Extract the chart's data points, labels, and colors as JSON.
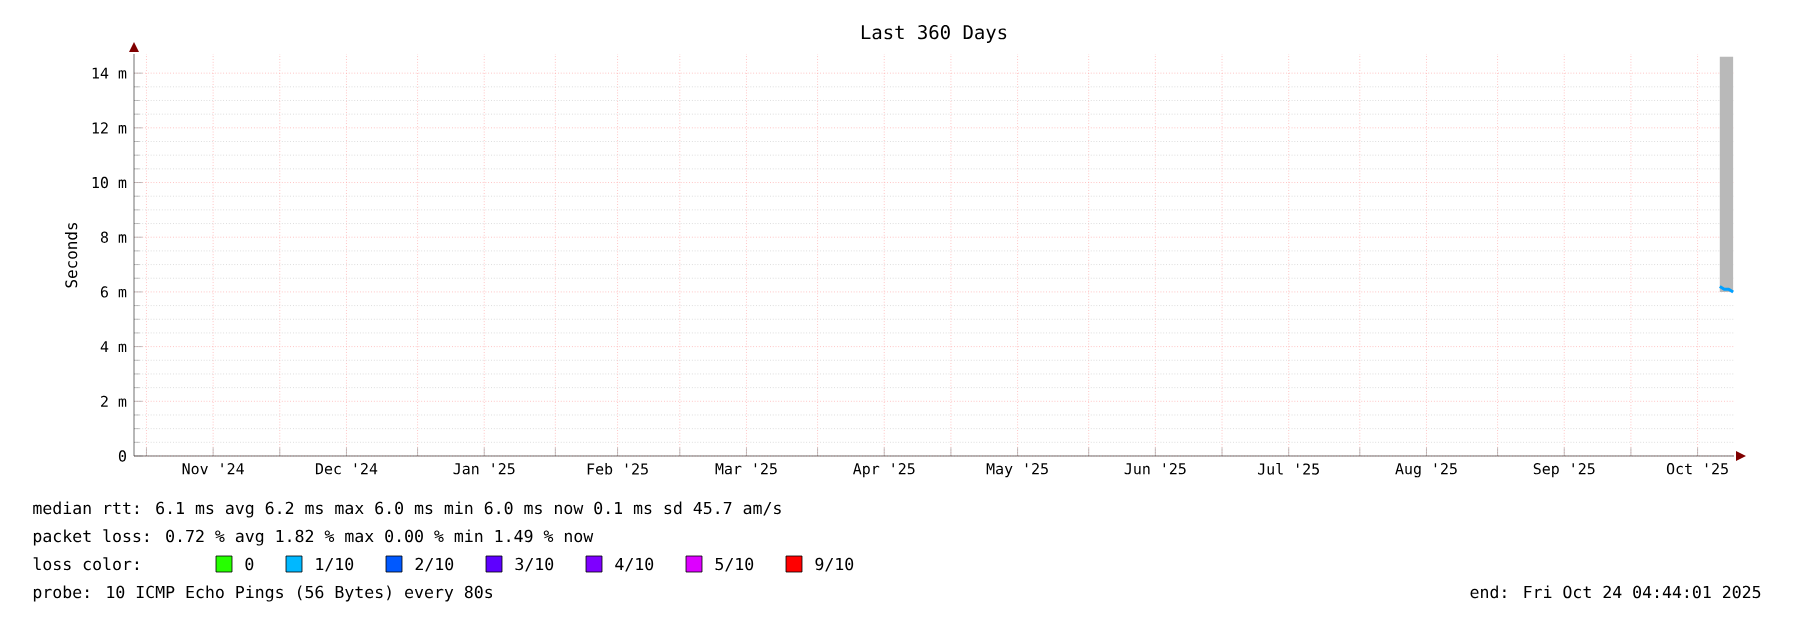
{
  "chart_data": {
    "type": "line",
    "title": "Last 360 Days",
    "ylabel": "Seconds",
    "xlim": [
      "2024-10-29T04:44",
      "2025-10-24T04:44"
    ],
    "xticks": [
      {
        "value": "2024-11-01",
        "label": null
      },
      {
        "value": "2024-11-16",
        "label": "Nov '24"
      },
      {
        "value": "2024-12-01",
        "label": null
      },
      {
        "value": "2024-12-16",
        "label": "Dec '24"
      },
      {
        "value": "2025-01-01",
        "label": null
      },
      {
        "value": "2025-01-16",
        "label": "Jan '25"
      },
      {
        "value": "2025-02-01",
        "label": null
      },
      {
        "value": "2025-02-15",
        "label": "Feb '25"
      },
      {
        "value": "2025-03-01",
        "label": null
      },
      {
        "value": "2025-03-16",
        "label": "Mar '25"
      },
      {
        "value": "2025-04-01",
        "label": null
      },
      {
        "value": "2025-04-16",
        "label": "Apr '25"
      },
      {
        "value": "2025-05-01",
        "label": null
      },
      {
        "value": "2025-05-16",
        "label": "May '25"
      },
      {
        "value": "2025-06-01",
        "label": null
      },
      {
        "value": "2025-06-16",
        "label": "Jun '25"
      },
      {
        "value": "2025-07-01",
        "label": null
      },
      {
        "value": "2025-07-16",
        "label": "Jul '25"
      },
      {
        "value": "2025-08-01",
        "label": null
      },
      {
        "value": "2025-08-16",
        "label": "Aug '25"
      },
      {
        "value": "2025-09-01",
        "label": null
      },
      {
        "value": "2025-09-16",
        "label": "Sep '25"
      },
      {
        "value": "2025-10-01",
        "label": null
      },
      {
        "value": "2025-10-16",
        "label": "Oct '25"
      }
    ],
    "ylim": [
      0,
      14.7
    ],
    "yticks": [
      {
        "value": 0,
        "label": "0"
      },
      {
        "value": 2,
        "label": "2 m"
      },
      {
        "value": 4,
        "label": "4 m"
      },
      {
        "value": 6,
        "label": "6 m"
      },
      {
        "value": 8,
        "label": "8 m"
      },
      {
        "value": 10,
        "label": "10 m"
      },
      {
        "value": 12,
        "label": "12 m"
      },
      {
        "value": 14,
        "label": "14 m"
      }
    ],
    "grid": true,
    "legend": "bottom",
    "series": [
      {
        "color": "#00a0ff",
        "x": [
          "2025-10-21",
          "2025-10-22",
          "2025-10-23",
          "2025-10-24"
        ],
        "values": [
          6.2,
          6.1,
          6.1,
          6.0
        ],
        "lower": [
          6.0,
          6.0,
          6.0,
          6.0
        ],
        "upper": [
          14.6,
          14.6,
          14.6,
          14.6
        ]
      },
      {
        "name": "0",
        "color": "#26ff00",
        "values": [
          null
        ]
      },
      {
        "name": "1/10",
        "color": "#00b8ff",
        "values": [
          null
        ]
      },
      {
        "name": "2/10",
        "color": "#0059ff",
        "values": [
          null
        ]
      },
      {
        "name": "3/10",
        "color": "#5e00ff",
        "values": [
          null
        ]
      },
      {
        "name": "4/10",
        "color": "#7e00ff",
        "values": [
          null
        ]
      },
      {
        "name": "5/10",
        "color": "#dd00ff",
        "values": [
          null
        ]
      },
      {
        "name": "9/10",
        "color": "#ff0000",
        "values": [
          null
        ]
      }
    ],
    "annotations": [
      "median rtt:  6.1 ms avg  6.2 ms max  6.0 ms min  6.0 ms now  0.1 ms sd  45.7   am/s",
      "packet loss: 0.72 % avg  1.82 % max  0.00 % min  1.49 % now",
      "loss color:",
      "probe:       10 ICMP Echo Pings (56 Bytes) every 80s",
      "end: Fri Oct 24 04:44:01 2025"
    ]
  }
}
